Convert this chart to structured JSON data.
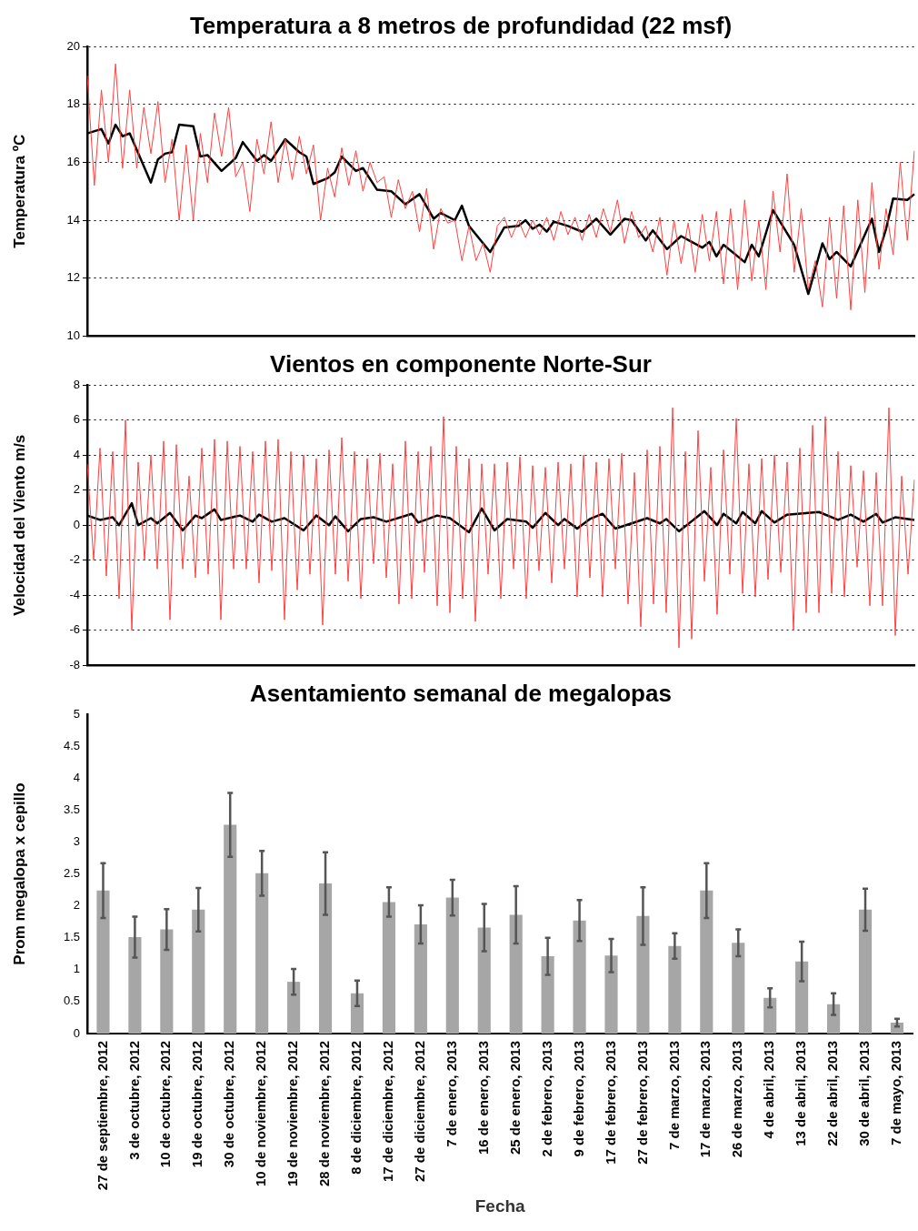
{
  "chart_data": [
    {
      "type": "line",
      "title": "Temperatura a 8 metros de profundidad (22 msf)",
      "ylabel": "Temperatura ºC",
      "categories": [
        null,
        null,
        null,
        null,
        null,
        null,
        null,
        null,
        null,
        null,
        null,
        null,
        null,
        null,
        null,
        null,
        null,
        null,
        null,
        null,
        null,
        null,
        null,
        null,
        null,
        null,
        null,
        null,
        null,
        null,
        null,
        null,
        null,
        null,
        null,
        null,
        null,
        null,
        null,
        null,
        null,
        null,
        null,
        null,
        null,
        null,
        null,
        null,
        null,
        null,
        null,
        null,
        null,
        null,
        null,
        null,
        null,
        null,
        null,
        null,
        null,
        null,
        null,
        null,
        null,
        null,
        null,
        null,
        null,
        null,
        null,
        null,
        null,
        null,
        null,
        null,
        null,
        null,
        null,
        null,
        null,
        null,
        null,
        null,
        null,
        null,
        null,
        null,
        null,
        null,
        null,
        null,
        null,
        null,
        null,
        null,
        null,
        null,
        null,
        null,
        null,
        null,
        null,
        null,
        null,
        null,
        null,
        null,
        null,
        null,
        null,
        null,
        null,
        null,
        null,
        null,
        null,
        null
      ],
      "ylim": [
        10,
        20
      ],
      "yticks": [
        10,
        12,
        14,
        16,
        18,
        20
      ],
      "grid": "y",
      "tick_labels": "y",
      "series": [
        {
          "color": "#ff4040",
          "values": [
            19.0,
            15.2,
            18.5,
            16.0,
            19.4,
            15.8,
            18.5,
            15.8,
            17.9,
            16.3,
            18.1,
            15.3,
            16.8,
            14.0,
            16.6,
            14.0,
            17.0,
            15.3,
            17.7,
            16.2,
            17.9,
            15.5,
            16.0,
            14.3,
            16.8,
            15.6,
            17.4,
            15.3,
            16.8,
            15.4,
            16.9,
            15.6,
            16.6,
            14.0,
            15.8,
            14.8,
            16.5,
            15.2,
            16.4,
            15.0,
            16.0,
            15.3,
            15.5,
            14.1,
            15.4,
            14.4,
            15.0,
            13.6,
            15.1,
            13.0,
            14.4,
            13.9,
            14.0,
            12.6,
            13.8,
            12.6,
            13.2,
            12.2,
            13.8,
            14.1,
            13.4,
            14.0,
            13.4,
            14.0,
            13.5,
            14.1,
            13.3,
            14.3,
            13.5,
            14.1,
            13.3,
            14.2,
            13.4,
            14.4,
            13.6,
            14.7,
            13.2,
            14.3,
            13.4,
            13.8,
            12.9,
            14.1,
            12.1,
            14.0,
            12.5,
            13.9,
            12.2,
            14.2,
            12.6,
            14.3,
            11.8,
            14.4,
            11.6,
            14.7,
            11.9,
            14.0,
            11.6,
            15.0,
            12.9,
            15.6,
            12.2,
            14.4,
            11.6,
            12.6,
            11.0,
            14.1,
            11.3,
            14.5,
            10.9,
            14.7,
            11.5,
            15.3,
            12.3,
            14.4,
            12.8,
            16.0,
            13.3,
            16.4
          ]
        },
        {
          "color": "#000000",
          "values": [
            17.0,
            null,
            17.15,
            16.65,
            17.3,
            16.9,
            17.0,
            null,
            null,
            15.3,
            16.1,
            16.3,
            16.35,
            17.3,
            null,
            17.25,
            16.2,
            16.25,
            null,
            15.7,
            null,
            16.15,
            16.7,
            null,
            16.05,
            16.25,
            16.05,
            null,
            16.8,
            null,
            16.35,
            16.2,
            15.25,
            null,
            15.45,
            15.65,
            16.2,
            null,
            15.7,
            15.8,
            null,
            15.05,
            null,
            15.0,
            null,
            14.55,
            null,
            14.9,
            null,
            14.05,
            14.25,
            null,
            14.0,
            14.5,
            13.8,
            null,
            null,
            12.9,
            null,
            13.75,
            null,
            13.8,
            14.0,
            13.7,
            13.85,
            13.6,
            13.95,
            null,
            13.8,
            null,
            13.6,
            null,
            14.05,
            null,
            13.5,
            null,
            14.05,
            14.0,
            null,
            13.3,
            13.65,
            null,
            13.0,
            null,
            13.45,
            null,
            null,
            13.05,
            13.25,
            12.75,
            13.15,
            null,
            null,
            12.55,
            13.15,
            12.75,
            null,
            14.35,
            null,
            null,
            13.15,
            null,
            11.45,
            null,
            13.2,
            12.65,
            12.9,
            null,
            12.4,
            null,
            null,
            14.05,
            12.9,
            13.7,
            14.75,
            null,
            14.7,
            14.9
          ]
        }
      ]
    },
    {
      "type": "line",
      "title": "Vientos en componente Norte-Sur",
      "ylabel": "Velocidad del Viento m/s",
      "categories": [
        null,
        null,
        null,
        null,
        null,
        null,
        null,
        null,
        null,
        null,
        null,
        null,
        null,
        null,
        null,
        null,
        null,
        null,
        null,
        null,
        null,
        null,
        null,
        null,
        null,
        null,
        null,
        null,
        null,
        null,
        null,
        null,
        null,
        null,
        null,
        null,
        null,
        null,
        null,
        null,
        null,
        null,
        null,
        null,
        null,
        null,
        null,
        null,
        null,
        null,
        null,
        null,
        null,
        null,
        null,
        null,
        null,
        null,
        null,
        null,
        null,
        null,
        null,
        null,
        null,
        null,
        null,
        null,
        null,
        null,
        null,
        null,
        null,
        null,
        null,
        null,
        null,
        null,
        null,
        null,
        null,
        null,
        null,
        null,
        null,
        null,
        null,
        null,
        null,
        null,
        null,
        null,
        null,
        null,
        null,
        null,
        null,
        null,
        null,
        null,
        null,
        null,
        null,
        null,
        null,
        null,
        null,
        null,
        null,
        null,
        null,
        null,
        null,
        null,
        null,
        null,
        null,
        null,
        null,
        null,
        null,
        null,
        null,
        null,
        null,
        null,
        null,
        null,
        null,
        null,
        null
      ],
      "ylim": [
        -8,
        8
      ],
      "yticks": [
        -8,
        -6,
        -4,
        -2,
        0,
        2,
        4,
        6,
        8
      ],
      "grid": "y",
      "tick_labels": "y",
      "series": [
        {
          "color": "#ff4040",
          "values": [
            3.5,
            -2,
            4.4,
            -2.9,
            4.2,
            -4.2,
            6.0,
            -6.0,
            3.6,
            -2.0,
            4.0,
            -2.5,
            4.8,
            -5.4,
            4.6,
            -2.5,
            2.8,
            -3.0,
            4.4,
            -2.8,
            4.9,
            -5.4,
            4.8,
            -2.5,
            4.5,
            -2.5,
            4.2,
            -3.3,
            4.8,
            -2.6,
            4.9,
            -5.4,
            4.2,
            -3.7,
            4.0,
            -2.8,
            3.8,
            -5.7,
            4.3,
            -2.8,
            5.0,
            -3.2,
            4.2,
            -4.2,
            3.8,
            -2.2,
            4.1,
            -3.0,
            3.5,
            -4.5,
            4.8,
            -4.2,
            4.2,
            -2.7,
            4.5,
            -4.6,
            6.2,
            -5.0,
            4.5,
            -4.2,
            3.8,
            -5.5,
            3.5,
            -2.8,
            3.5,
            -4.2,
            3.6,
            -2.5,
            3.9,
            -4.2,
            3.4,
            -2.6,
            3.3,
            -3.3,
            3.6,
            -2.5,
            3.5,
            -4.1,
            4.0,
            -3.0,
            3.6,
            -4.1,
            3.8,
            -2.5,
            4.1,
            -4.5,
            3.0,
            -5.8,
            4.3,
            -4.5,
            4.5,
            -5.0,
            6.7,
            -7.0,
            4.2,
            -6.5,
            5.4,
            -3.2,
            3.3,
            -5.1,
            4.3,
            -2.8,
            6.1,
            -3.9,
            3.5,
            -4.1,
            3.8,
            -3.1,
            4.0,
            -2.7,
            3.6,
            -6.0,
            4.4,
            -5.0,
            5.7,
            -5.0,
            6.2,
            -3.9,
            4.2,
            -4.1,
            3.4,
            -2.4,
            3.1,
            -4.6,
            3.0,
            -4.6,
            6.7,
            -6.3,
            2.8,
            -2.8,
            2.6
          ]
        },
        {
          "color": "#000000",
          "values": [
            0.55,
            null,
            0.3,
            null,
            0.45,
            0,
            null,
            1.25,
            0,
            null,
            0.4,
            0.1,
            null,
            0.7,
            null,
            -0.3,
            null,
            0.55,
            0.4,
            null,
            0.9,
            0.3,
            null,
            null,
            0.55,
            null,
            0.2,
            0.6,
            null,
            0.2,
            null,
            0.4,
            null,
            null,
            -0.3,
            null,
            0.55,
            null,
            0,
            0.5,
            null,
            -0.35,
            null,
            0.35,
            null,
            0.45,
            null,
            0.2,
            null,
            null,
            null,
            0.65,
            0.15,
            null,
            null,
            0.55,
            null,
            0.4,
            null,
            null,
            -0.4,
            null,
            0.95,
            null,
            -0.3,
            null,
            0.35,
            null,
            null,
            0.2,
            -0.15,
            null,
            0.7,
            null,
            0,
            0.35,
            null,
            -0.2,
            null,
            0.35,
            null,
            0.65,
            null,
            -0.2,
            null,
            null,
            0.15,
            null,
            0.4,
            null,
            0.1,
            0.35,
            null,
            -0.35,
            null,
            null,
            null,
            0.8,
            null,
            0,
            0.65,
            null,
            0.1,
            0.75,
            null,
            0.1,
            0.8,
            null,
            0.15,
            null,
            0.6,
            null,
            null,
            null,
            null,
            0.75,
            null,
            null,
            0.3,
            null,
            0.6,
            null,
            0.2,
            null,
            0.65,
            0.15,
            null,
            0.45,
            null,
            null,
            0.3
          ]
        }
      ]
    },
    {
      "type": "bar",
      "title": "Asentamiento semanal de megalopas",
      "xlabel": "Fecha",
      "ylabel": "Prom megalopa x cepillo",
      "color": "#a6a6a6",
      "categories": [
        "27 de septiembre, 2012",
        "3 de octubre, 2012",
        "10 de octubre, 2012",
        "19 de octubre, 2012",
        "30 de octubre, 2012",
        "10 de noviembre, 2012",
        "19 de noviembre, 2012",
        "28 de noviembre, 2012",
        "8 de diciembre, 2012",
        "17 de diciembre, 2012",
        "27 de diciembre, 2012",
        "7 de enero, 2013",
        "16 de enero, 2013",
        "25 de enero, 2013",
        "2 de febrero, 2013",
        "9 de febrero, 2013",
        "17 de febrero, 2013",
        "27 de febrero, 2013",
        "7 de marzo, 2013",
        "17 de marzo, 2013",
        "26 de marzo, 2013",
        "4 de abril, 2013",
        "13 de abril, 2013",
        "22 de abril, 2013",
        "30 de abril, 2013",
        "7 de mayo, 2013"
      ],
      "values": [
        2.24,
        1.51,
        1.63,
        1.94,
        3.27,
        2.51,
        0.81,
        2.35,
        0.63,
        2.06,
        1.71,
        2.13,
        1.66,
        1.86,
        1.21,
        1.77,
        1.22,
        1.84,
        1.37,
        2.24,
        1.42,
        0.56,
        1.13,
        0.46,
        1.94,
        0.17
      ],
      "errors": [
        0.43,
        0.32,
        0.32,
        0.34,
        0.5,
        0.35,
        0.2,
        0.49,
        0.2,
        0.23,
        0.3,
        0.28,
        0.37,
        0.45,
        0.29,
        0.32,
        0.26,
        0.45,
        0.2,
        0.43,
        0.21,
        0.15,
        0.31,
        0.17,
        0.33,
        0.06
      ],
      "ylim": [
        0,
        5
      ],
      "yticks": [
        0,
        0.5,
        1,
        1.5,
        2,
        2.5,
        3,
        3.5,
        4,
        4.5,
        5
      ]
    }
  ]
}
